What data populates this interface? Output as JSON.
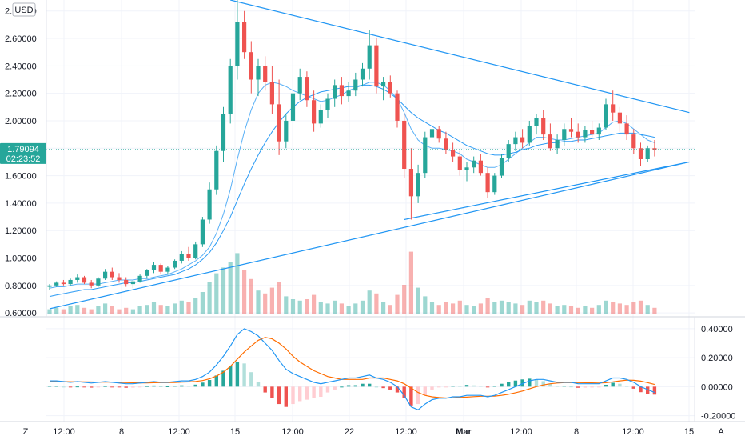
{
  "currency_label": "USD",
  "price_axis": {
    "ticks": [
      "2.80000",
      "2.60000",
      "2.40000",
      "2.20000",
      "2.00000",
      "1.80000",
      "1.60000",
      "1.40000",
      "1.20000",
      "1.00000",
      "0.80000",
      "0.60000"
    ],
    "range": [
      0.595,
      2.88
    ],
    "scale": "linear",
    "position": "left"
  },
  "macd_axis": {
    "ticks": [
      "0.40000",
      "0.20000",
      "0.00000",
      "-0.20000"
    ],
    "range": [
      -0.23,
      0.46
    ],
    "position": "right"
  },
  "time_axis": {
    "ticks": [
      "12:00",
      "8",
      "12:00",
      "15",
      "12:00",
      "22",
      "12:00",
      "Mar",
      "12:00",
      "8",
      "12:00",
      "15"
    ]
  },
  "last_price": {
    "value": "1.79094",
    "countdown": "02:23:52",
    "color": "#26a69a"
  },
  "bottom_buttons": {
    "left": "Z",
    "right": "A"
  },
  "colors": {
    "up": "#26a69a",
    "down": "#ef5350",
    "trendline": "#2196f3",
    "ma": "#2196f3",
    "macd_line": "#2196f3",
    "signal_line": "#ff6d00"
  },
  "chart_data": {
    "type": "candlestick",
    "instrument_quote": "USD",
    "candles_ohlc": [
      [
        0.79,
        0.81,
        0.77,
        0.8
      ],
      [
        0.8,
        0.83,
        0.79,
        0.82
      ],
      [
        0.82,
        0.84,
        0.8,
        0.81
      ],
      [
        0.81,
        0.85,
        0.8,
        0.84
      ],
      [
        0.84,
        0.88,
        0.82,
        0.86
      ],
      [
        0.86,
        0.87,
        0.81,
        0.82
      ],
      [
        0.82,
        0.84,
        0.78,
        0.8
      ],
      [
        0.8,
        0.86,
        0.79,
        0.85
      ],
      [
        0.85,
        0.92,
        0.84,
        0.9
      ],
      [
        0.9,
        0.93,
        0.84,
        0.86
      ],
      [
        0.86,
        0.89,
        0.82,
        0.84
      ],
      [
        0.84,
        0.86,
        0.79,
        0.81
      ],
      [
        0.81,
        0.84,
        0.78,
        0.83
      ],
      [
        0.83,
        0.88,
        0.82,
        0.87
      ],
      [
        0.87,
        0.92,
        0.85,
        0.91
      ],
      [
        0.91,
        0.97,
        0.89,
        0.95
      ],
      [
        0.95,
        0.96,
        0.88,
        0.9
      ],
      [
        0.9,
        0.94,
        0.88,
        0.93
      ],
      [
        0.93,
        0.99,
        0.92,
        0.98
      ],
      [
        0.98,
        1.05,
        0.96,
        1.03
      ],
      [
        1.03,
        1.08,
        0.98,
        1.0
      ],
      [
        1.0,
        1.12,
        0.99,
        1.1
      ],
      [
        1.1,
        1.3,
        1.08,
        1.28
      ],
      [
        1.28,
        1.55,
        1.25,
        1.5
      ],
      [
        1.5,
        1.82,
        1.46,
        1.78
      ],
      [
        1.78,
        2.1,
        1.7,
        2.05
      ],
      [
        2.05,
        2.45,
        1.98,
        2.4
      ],
      [
        2.4,
        2.88,
        2.3,
        2.72
      ],
      [
        2.72,
        2.8,
        2.45,
        2.5
      ],
      [
        2.5,
        2.58,
        2.2,
        2.3
      ],
      [
        2.3,
        2.45,
        2.18,
        2.4
      ],
      [
        2.4,
        2.47,
        2.22,
        2.28
      ],
      [
        2.28,
        2.4,
        2.05,
        2.12
      ],
      [
        2.12,
        2.3,
        1.75,
        1.85
      ],
      [
        1.85,
        2.05,
        1.8,
        2.0
      ],
      [
        2.0,
        2.25,
        1.95,
        2.2
      ],
      [
        2.2,
        2.38,
        2.15,
        2.32
      ],
      [
        2.32,
        2.36,
        2.1,
        2.15
      ],
      [
        2.15,
        2.22,
        1.92,
        1.98
      ],
      [
        1.98,
        2.12,
        1.95,
        2.08
      ],
      [
        2.08,
        2.2,
        2.02,
        2.16
      ],
      [
        2.16,
        2.3,
        2.1,
        2.26
      ],
      [
        2.26,
        2.32,
        2.12,
        2.18
      ],
      [
        2.18,
        2.28,
        2.14,
        2.22
      ],
      [
        2.22,
        2.35,
        2.18,
        2.3
      ],
      [
        2.3,
        2.42,
        2.25,
        2.38
      ],
      [
        2.38,
        2.66,
        2.3,
        2.55
      ],
      [
        2.55,
        2.6,
        2.2,
        2.25
      ],
      [
        2.25,
        2.32,
        2.15,
        2.28
      ],
      [
        2.28,
        2.33,
        2.17,
        2.2
      ],
      [
        2.2,
        2.22,
        1.95,
        2.0
      ],
      [
        2.0,
        2.05,
        1.58,
        1.65
      ],
      [
        1.65,
        1.8,
        1.28,
        1.45
      ],
      [
        1.45,
        1.68,
        1.4,
        1.62
      ],
      [
        1.62,
        1.92,
        1.58,
        1.88
      ],
      [
        1.88,
        1.98,
        1.82,
        1.94
      ],
      [
        1.94,
        1.96,
        1.84,
        1.87
      ],
      [
        1.87,
        1.92,
        1.76,
        1.79
      ],
      [
        1.79,
        1.84,
        1.7,
        1.74
      ],
      [
        1.74,
        1.78,
        1.6,
        1.64
      ],
      [
        1.64,
        1.7,
        1.56,
        1.66
      ],
      [
        1.66,
        1.74,
        1.62,
        1.71
      ],
      [
        1.71,
        1.76,
        1.6,
        1.62
      ],
      [
        1.62,
        1.66,
        1.44,
        1.48
      ],
      [
        1.48,
        1.62,
        1.46,
        1.6
      ],
      [
        1.6,
        1.76,
        1.58,
        1.73
      ],
      [
        1.73,
        1.86,
        1.7,
        1.83
      ],
      [
        1.83,
        1.92,
        1.78,
        1.88
      ],
      [
        1.88,
        1.94,
        1.8,
        1.84
      ],
      [
        1.84,
        2.0,
        1.82,
        1.96
      ],
      [
        1.96,
        2.05,
        1.9,
        2.02
      ],
      [
        2.02,
        2.08,
        1.86,
        1.9
      ],
      [
        1.9,
        1.98,
        1.78,
        1.8
      ],
      [
        1.8,
        1.9,
        1.76,
        1.86
      ],
      [
        1.86,
        1.98,
        1.82,
        1.94
      ],
      [
        1.94,
        2.02,
        1.88,
        1.92
      ],
      [
        1.92,
        1.98,
        1.84,
        1.88
      ],
      [
        1.88,
        1.96,
        1.84,
        1.93
      ],
      [
        1.93,
        2.0,
        1.88,
        1.9
      ],
      [
        1.9,
        1.98,
        1.86,
        1.95
      ],
      [
        1.95,
        2.16,
        1.93,
        2.12
      ],
      [
        2.12,
        2.22,
        2.0,
        2.06
      ],
      [
        2.06,
        2.1,
        1.92,
        1.98
      ],
      [
        1.98,
        2.04,
        1.86,
        1.9
      ],
      [
        1.9,
        1.94,
        1.76,
        1.8
      ],
      [
        1.8,
        1.84,
        1.67,
        1.72
      ],
      [
        1.72,
        1.82,
        1.7,
        1.8
      ],
      [
        1.8,
        1.86,
        1.74,
        1.79
      ]
    ],
    "moving_averages": [
      {
        "values": [
          0.78,
          0.79,
          0.79,
          0.8,
          0.81,
          0.81,
          0.81,
          0.81,
          0.82,
          0.83,
          0.84,
          0.84,
          0.84,
          0.85,
          0.85,
          0.86,
          0.87,
          0.88,
          0.9,
          0.92,
          0.95,
          0.98,
          1.02,
          1.08,
          1.18,
          1.32,
          1.5,
          1.72,
          1.92,
          2.08,
          2.2,
          2.26,
          2.28,
          2.27,
          2.25,
          2.22,
          2.2,
          2.18,
          2.16,
          2.14,
          2.15,
          2.17,
          2.19,
          2.22,
          2.24,
          2.26,
          2.28,
          2.28,
          2.26,
          2.22,
          2.16,
          2.06,
          1.94,
          1.86,
          1.82,
          1.8,
          1.8,
          1.79,
          1.78,
          1.76,
          1.72,
          1.7,
          1.68,
          1.66,
          1.66,
          1.68,
          1.72,
          1.76,
          1.8,
          1.84,
          1.88,
          1.88,
          1.87,
          1.86,
          1.86,
          1.87,
          1.88,
          1.89,
          1.9,
          1.91,
          1.95,
          1.99,
          2.0,
          1.98,
          1.94,
          1.9,
          1.86,
          1.84
        ]
      },
      {
        "values": [
          0.72,
          0.73,
          0.74,
          0.75,
          0.76,
          0.77,
          0.77,
          0.78,
          0.79,
          0.8,
          0.81,
          0.82,
          0.82,
          0.83,
          0.84,
          0.85,
          0.86,
          0.87,
          0.88,
          0.9,
          0.92,
          0.95,
          0.99,
          1.04,
          1.11,
          1.2,
          1.3,
          1.42,
          1.54,
          1.65,
          1.75,
          1.84,
          1.92,
          1.99,
          2.05,
          2.1,
          2.14,
          2.17,
          2.19,
          2.21,
          2.22,
          2.23,
          2.24,
          2.25,
          2.25,
          2.26,
          2.26,
          2.25,
          2.23,
          2.2,
          2.16,
          2.11,
          2.06,
          2.02,
          1.99,
          1.96,
          1.93,
          1.91,
          1.88,
          1.85,
          1.82,
          1.8,
          1.78,
          1.76,
          1.75,
          1.75,
          1.76,
          1.77,
          1.79,
          1.8,
          1.82,
          1.83,
          1.84,
          1.84,
          1.85,
          1.85,
          1.86,
          1.86,
          1.87,
          1.88,
          1.89,
          1.9,
          1.91,
          1.91,
          1.91,
          1.9,
          1.89,
          1.88
        ]
      }
    ],
    "trendlines": [
      {
        "points": [
          [
            0,
            0.63
          ],
          [
            92,
            1.7
          ]
        ]
      },
      {
        "points": [
          [
            26,
            2.88
          ],
          [
            92,
            2.06
          ]
        ]
      },
      {
        "points": [
          [
            51,
            1.28
          ],
          [
            92,
            1.7
          ]
        ]
      }
    ],
    "last_price_line": 1.79094,
    "volume": [
      {
        "v": 0.3,
        "up": true
      },
      {
        "v": 0.4,
        "up": true
      },
      {
        "v": 0.3,
        "up": false
      },
      {
        "v": 0.5,
        "up": true
      },
      {
        "v": 0.6,
        "up": true
      },
      {
        "v": 0.4,
        "up": false
      },
      {
        "v": 0.3,
        "up": false
      },
      {
        "v": 0.5,
        "up": true
      },
      {
        "v": 0.7,
        "up": true
      },
      {
        "v": 0.5,
        "up": false
      },
      {
        "v": 0.3,
        "up": false
      },
      {
        "v": 0.4,
        "up": false
      },
      {
        "v": 0.3,
        "up": true
      },
      {
        "v": 0.5,
        "up": true
      },
      {
        "v": 0.6,
        "up": true
      },
      {
        "v": 0.8,
        "up": true
      },
      {
        "v": 0.6,
        "up": false
      },
      {
        "v": 0.5,
        "up": true
      },
      {
        "v": 0.7,
        "up": true
      },
      {
        "v": 0.9,
        "up": true
      },
      {
        "v": 0.8,
        "up": false
      },
      {
        "v": 1.1,
        "up": true
      },
      {
        "v": 1.5,
        "up": true
      },
      {
        "v": 2.2,
        "up": true
      },
      {
        "v": 2.8,
        "up": true
      },
      {
        "v": 3.2,
        "up": true
      },
      {
        "v": 3.6,
        "up": true
      },
      {
        "v": 4.2,
        "up": true
      },
      {
        "v": 3.0,
        "up": false
      },
      {
        "v": 2.4,
        "up": false
      },
      {
        "v": 1.6,
        "up": true
      },
      {
        "v": 1.4,
        "up": false
      },
      {
        "v": 1.8,
        "up": false
      },
      {
        "v": 2.2,
        "up": false
      },
      {
        "v": 1.2,
        "up": true
      },
      {
        "v": 1.0,
        "up": true
      },
      {
        "v": 0.9,
        "up": true
      },
      {
        "v": 1.0,
        "up": false
      },
      {
        "v": 1.3,
        "up": false
      },
      {
        "v": 0.8,
        "up": true
      },
      {
        "v": 0.7,
        "up": true
      },
      {
        "v": 0.9,
        "up": true
      },
      {
        "v": 0.7,
        "up": false
      },
      {
        "v": 0.5,
        "up": true
      },
      {
        "v": 0.7,
        "up": true
      },
      {
        "v": 0.9,
        "up": true
      },
      {
        "v": 1.6,
        "up": true
      },
      {
        "v": 1.4,
        "up": false
      },
      {
        "v": 0.8,
        "up": true
      },
      {
        "v": 0.6,
        "up": false
      },
      {
        "v": 1.3,
        "up": false
      },
      {
        "v": 2.0,
        "up": false
      },
      {
        "v": 4.3,
        "up": false
      },
      {
        "v": 1.8,
        "up": true
      },
      {
        "v": 1.2,
        "up": true
      },
      {
        "v": 0.8,
        "up": true
      },
      {
        "v": 0.6,
        "up": false
      },
      {
        "v": 0.8,
        "up": false
      },
      {
        "v": 0.7,
        "up": false
      },
      {
        "v": 0.9,
        "up": false
      },
      {
        "v": 0.6,
        "up": true
      },
      {
        "v": 0.5,
        "up": true
      },
      {
        "v": 0.7,
        "up": false
      },
      {
        "v": 1.1,
        "up": false
      },
      {
        "v": 0.8,
        "up": true
      },
      {
        "v": 0.9,
        "up": true
      },
      {
        "v": 0.8,
        "up": true
      },
      {
        "v": 0.7,
        "up": true
      },
      {
        "v": 0.6,
        "up": false
      },
      {
        "v": 0.9,
        "up": true
      },
      {
        "v": 0.8,
        "up": true
      },
      {
        "v": 0.9,
        "up": false
      },
      {
        "v": 0.7,
        "up": false
      },
      {
        "v": 0.5,
        "up": true
      },
      {
        "v": 0.6,
        "up": true
      },
      {
        "v": 0.5,
        "up": false
      },
      {
        "v": 0.4,
        "up": false
      },
      {
        "v": 0.5,
        "up": true
      },
      {
        "v": 0.4,
        "up": false
      },
      {
        "v": 0.6,
        "up": true
      },
      {
        "v": 0.9,
        "up": true
      },
      {
        "v": 0.8,
        "up": false
      },
      {
        "v": 0.7,
        "up": false
      },
      {
        "v": 0.6,
        "up": false
      },
      {
        "v": 0.8,
        "up": false
      },
      {
        "v": 0.9,
        "up": false
      },
      {
        "v": 0.6,
        "up": true
      },
      {
        "v": 0.4,
        "up": false
      }
    ],
    "macd": {
      "macd_line": [
        0.04,
        0.04,
        0.035,
        0.03,
        0.035,
        0.03,
        0.025,
        0.03,
        0.035,
        0.03,
        0.025,
        0.02,
        0.02,
        0.025,
        0.03,
        0.035,
        0.03,
        0.03,
        0.035,
        0.04,
        0.04,
        0.05,
        0.07,
        0.1,
        0.15,
        0.21,
        0.28,
        0.36,
        0.4,
        0.38,
        0.35,
        0.3,
        0.25,
        0.18,
        0.12,
        0.09,
        0.07,
        0.05,
        0.03,
        0.02,
        0.03,
        0.04,
        0.05,
        0.06,
        0.06,
        0.07,
        0.08,
        0.06,
        0.05,
        0.03,
        0.0,
        -0.06,
        -0.14,
        -0.16,
        -0.12,
        -0.09,
        -0.08,
        -0.08,
        -0.07,
        -0.07,
        -0.06,
        -0.06,
        -0.06,
        -0.07,
        -0.06,
        -0.04,
        -0.02,
        0.0,
        0.02,
        0.04,
        0.05,
        0.05,
        0.04,
        0.03,
        0.03,
        0.03,
        0.02,
        0.02,
        0.02,
        0.02,
        0.04,
        0.06,
        0.06,
        0.05,
        0.03,
        0.0,
        -0.02,
        -0.04
      ],
      "signal_line": [
        0.035,
        0.035,
        0.035,
        0.034,
        0.034,
        0.033,
        0.032,
        0.031,
        0.031,
        0.031,
        0.03,
        0.028,
        0.027,
        0.026,
        0.026,
        0.027,
        0.028,
        0.028,
        0.029,
        0.031,
        0.033,
        0.036,
        0.042,
        0.054,
        0.073,
        0.1,
        0.14,
        0.19,
        0.24,
        0.28,
        0.32,
        0.34,
        0.33,
        0.3,
        0.26,
        0.21,
        0.17,
        0.14,
        0.11,
        0.09,
        0.07,
        0.06,
        0.05,
        0.05,
        0.05,
        0.05,
        0.06,
        0.06,
        0.06,
        0.05,
        0.04,
        0.02,
        -0.01,
        -0.04,
        -0.06,
        -0.07,
        -0.075,
        -0.078,
        -0.077,
        -0.075,
        -0.072,
        -0.069,
        -0.066,
        -0.066,
        -0.065,
        -0.06,
        -0.052,
        -0.042,
        -0.03,
        -0.015,
        0.0,
        0.012,
        0.02,
        0.025,
        0.028,
        0.029,
        0.028,
        0.027,
        0.026,
        0.025,
        0.027,
        0.033,
        0.04,
        0.045,
        0.044,
        0.038,
        0.028,
        0.015
      ]
    }
  }
}
